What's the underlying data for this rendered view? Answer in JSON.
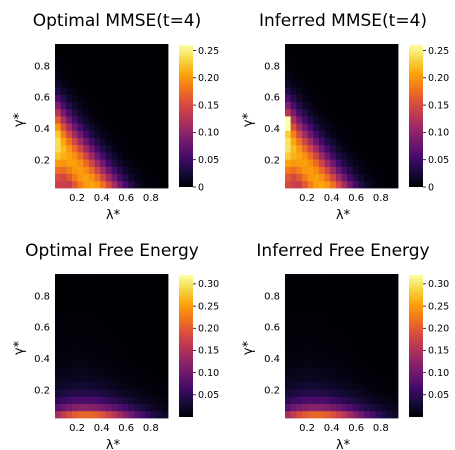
{
  "chart_data": [
    {
      "type": "heatmap",
      "title": "Optimal MMSE(t=4)",
      "xlabel": "λ*",
      "ylabel": "γ*",
      "x_ticks": [
        0.2,
        0.4,
        0.6,
        0.8
      ],
      "y_ticks": [
        0.2,
        0.4,
        0.6,
        0.8
      ],
      "x_tick_labels": [
        "0.2",
        "0.4",
        "0.6",
        "0.8"
      ],
      "y_tick_labels": [
        "0.2",
        "0.4",
        "0.6",
        "0.8"
      ],
      "xlim": [
        0.02,
        0.94
      ],
      "ylim": [
        0.02,
        0.94
      ],
      "grid_size": 20,
      "colorbar_range": [
        0,
        0.26
      ],
      "colorbar_ticks": [
        "0",
        "0.05",
        "0.10",
        "0.15",
        "0.20",
        "0.25"
      ],
      "colorbar_tick_values": [
        0,
        0.05,
        0.1,
        0.15,
        0.2,
        0.25
      ],
      "colormap": "inferno",
      "surface": {
        "kind": "mmse",
        "peak": 0.2,
        "edge": 0.18
      }
    },
    {
      "type": "heatmap",
      "title": "Inferred MMSE(t=4)",
      "xlabel": "λ*",
      "ylabel": "γ*",
      "x_ticks": [
        0.2,
        0.4,
        0.6,
        0.8
      ],
      "y_ticks": [
        0.2,
        0.4,
        0.6,
        0.8
      ],
      "x_tick_labels": [
        "0.2",
        "0.4",
        "0.6",
        "0.8"
      ],
      "y_tick_labels": [
        "0.2",
        "0.4",
        "0.6",
        "0.8"
      ],
      "xlim": [
        0.02,
        0.94
      ],
      "ylim": [
        0.02,
        0.94
      ],
      "grid_size": 20,
      "colorbar_range": [
        0,
        0.26
      ],
      "colorbar_ticks": [
        "0",
        "0.05",
        "0.10",
        "0.15",
        "0.20",
        "0.25"
      ],
      "colorbar_tick_values": [
        0,
        0.05,
        0.1,
        0.15,
        0.2,
        0.25
      ],
      "colormap": "inferno",
      "surface": {
        "kind": "mmse",
        "peak": 0.2,
        "edge": 0.2,
        "outlier": {
          "x": 0.04,
          "y": 0.44,
          "value": 0.26
        }
      }
    },
    {
      "type": "heatmap",
      "title": "Optimal Free Energy",
      "xlabel": "λ*",
      "ylabel": "γ*",
      "x_ticks": [
        0.2,
        0.4,
        0.6,
        0.8
      ],
      "y_ticks": [
        0.2,
        0.4,
        0.6,
        0.8
      ],
      "x_tick_labels": [
        "0.2",
        "0.4",
        "0.6",
        "0.8"
      ],
      "y_tick_labels": [
        "0.2",
        "0.4",
        "0.6",
        "0.8"
      ],
      "xlim": [
        0.02,
        0.94
      ],
      "ylim": [
        0.02,
        0.94
      ],
      "grid_size": 20,
      "colorbar_range": [
        0,
        0.32
      ],
      "colorbar_ticks": [
        "0.05",
        "0.10",
        "0.15",
        "0.20",
        "0.25",
        "0.30"
      ],
      "colorbar_tick_values": [
        0.05,
        0.1,
        0.15,
        0.2,
        0.25,
        0.3
      ],
      "colormap": "inferno",
      "surface": {
        "kind": "free_energy",
        "peak": 0.31
      }
    },
    {
      "type": "heatmap",
      "title": "Inferred Free Energy",
      "xlabel": "λ*",
      "ylabel": "γ*",
      "x_ticks": [
        0.2,
        0.4,
        0.6,
        0.8
      ],
      "y_ticks": [
        0.2,
        0.4,
        0.6,
        0.8
      ],
      "x_tick_labels": [
        "0.2",
        "0.4",
        "0.6",
        "0.8"
      ],
      "y_tick_labels": [
        "0.2",
        "0.4",
        "0.6",
        "0.8"
      ],
      "xlim": [
        0.02,
        0.94
      ],
      "ylim": [
        0.02,
        0.94
      ],
      "grid_size": 20,
      "colorbar_range": [
        0,
        0.32
      ],
      "colorbar_ticks": [
        "0.05",
        "0.10",
        "0.15",
        "0.20",
        "0.25",
        "0.30"
      ],
      "colorbar_tick_values": [
        0.05,
        0.1,
        0.15,
        0.2,
        0.25,
        0.3
      ],
      "colormap": "inferno",
      "surface": {
        "kind": "free_energy",
        "peak": 0.31
      }
    }
  ]
}
